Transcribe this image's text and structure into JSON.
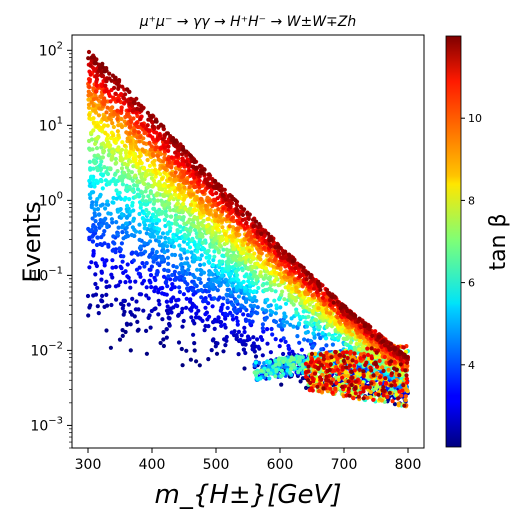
{
  "chart_data": {
    "type": "scatter",
    "title": "μ⁺μ⁻  →  γγ  →  H⁺H⁻  →  W±W∓Zh",
    "xlabel": "m_{H±}[GeV]",
    "ylabel": "Events",
    "colorbar_label": "tan β",
    "colormap": "jet",
    "x_ticks": [
      300,
      400,
      500,
      600,
      700,
      800
    ],
    "x_tick_labels": [
      "300",
      "400",
      "500",
      "600",
      "700",
      "800"
    ],
    "xlim": [
      275,
      825
    ],
    "y_scale": "log",
    "y_ticks": [
      0.001,
      0.01,
      0.1,
      1,
      10,
      100
    ],
    "y_tick_labels": [
      "10^-3",
      "10^-2",
      "10^-1",
      "10^0",
      "10^1",
      "10^2"
    ],
    "ylim": [
      0.0005,
      160
    ],
    "colorbar_ticks": [
      4,
      6,
      8,
      10
    ],
    "colorbar_range": [
      2,
      12
    ],
    "grid": false,
    "series": [
      {
        "description": "upper edge (high tan β)",
        "points": [
          {
            "x": 300,
            "y": 100,
            "c": 12
          },
          {
            "x": 350,
            "y": 40,
            "c": 12
          },
          {
            "x": 400,
            "y": 14,
            "c": 12
          },
          {
            "x": 450,
            "y": 5,
            "c": 12
          },
          {
            "x": 500,
            "y": 1.8,
            "c": 12
          },
          {
            "x": 550,
            "y": 0.7,
            "c": 12
          },
          {
            "x": 600,
            "y": 0.25,
            "c": 12
          },
          {
            "x": 650,
            "y": 0.1,
            "c": 12
          },
          {
            "x": 700,
            "y": 0.04,
            "c": 12
          },
          {
            "x": 750,
            "y": 0.018,
            "c": 12
          },
          {
            "x": 800,
            "y": 0.008,
            "c": 12
          }
        ]
      },
      {
        "description": "lower edge (low tan β)",
        "points": [
          {
            "x": 300,
            "y": 0.011,
            "c": 2
          },
          {
            "x": 400,
            "y": 0.0075,
            "c": 2
          },
          {
            "x": 500,
            "y": 0.005,
            "c": 2
          },
          {
            "x": 600,
            "y": 0.0035,
            "c": 2
          },
          {
            "x": 700,
            "y": 0.0024,
            "c": 2
          },
          {
            "x": 800,
            "y": 0.0017,
            "c": 2
          }
        ]
      },
      {
        "description": "plateau branch (mid tan β)",
        "points": [
          {
            "x": 560,
            "y": 0.007,
            "c": 5
          },
          {
            "x": 650,
            "y": 0.009,
            "c": 5.5
          },
          {
            "x": 750,
            "y": 0.011,
            "c": 6
          },
          {
            "x": 800,
            "y": 0.012,
            "c": 6
          }
        ]
      }
    ]
  }
}
